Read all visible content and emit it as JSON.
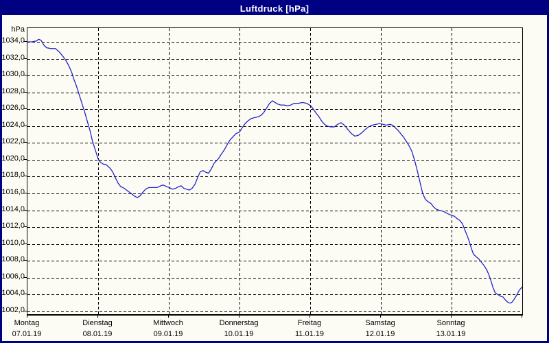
{
  "window": {
    "title": "Luftdruck [hPa]",
    "title_bar_color": "#000082",
    "border_color": "#000082",
    "client_background": "#FCFCF4"
  },
  "chart_data": {
    "type": "line",
    "title": "Luftdruck [hPa]",
    "ylabel": "hPa",
    "series_name": "Luftdruck",
    "line_color": "#2222CC",
    "grid": "dashed",
    "legend": "none",
    "ylim": [
      1001.66,
      1035.63
    ],
    "ytick_min": 1002,
    "ytick_max": 1034,
    "ytick_step": 2,
    "ytick_labels": [
      "1034,0",
      "1032,0",
      "1030,0",
      "1028,0",
      "1026,0",
      "1024,0",
      "1022,0",
      "1020,0",
      "1018,0",
      "1016,0",
      "1014,0",
      "1012,0",
      "1010,0",
      "1008,0",
      "1006,0",
      "1004,0",
      "1002,0"
    ],
    "x_total_hours": 168,
    "days": [
      {
        "label": "Montag",
        "date": "07.01.19"
      },
      {
        "label": "Dienstag",
        "date": "08.01.19"
      },
      {
        "label": "Mittwoch",
        "date": "09.01.19"
      },
      {
        "label": "Donnerstag",
        "date": "10.01.19"
      },
      {
        "label": "Freitag",
        "date": "11.01.19"
      },
      {
        "label": "Samstag",
        "date": "12.01.19"
      },
      {
        "label": "Sonntag",
        "date": "13.01.19"
      }
    ],
    "points": [
      [
        0,
        1034.0
      ],
      [
        1.5,
        1034.0
      ],
      [
        3,
        1034.1
      ],
      [
        3.8,
        1034.3
      ],
      [
        4.6,
        1034.2
      ],
      [
        5.6,
        1033.6
      ],
      [
        6.5,
        1033.3
      ],
      [
        8,
        1033.2
      ],
      [
        9.5,
        1033.2
      ],
      [
        10.8,
        1032.8
      ],
      [
        12,
        1032.3
      ],
      [
        13,
        1031.8
      ],
      [
        14,
        1031.2
      ],
      [
        15.1,
        1030.3
      ],
      [
        15.7,
        1029.6
      ],
      [
        16.6,
        1028.8
      ],
      [
        17.5,
        1027.8
      ],
      [
        18.4,
        1026.8
      ],
      [
        19.4,
        1025.7
      ],
      [
        20.3,
        1024.6
      ],
      [
        21.2,
        1023.5
      ],
      [
        22.1,
        1022.2
      ],
      [
        23,
        1021.2
      ],
      [
        24,
        1020.1
      ],
      [
        24.8,
        1019.7
      ],
      [
        25.6,
        1019.5
      ],
      [
        26.8,
        1019.4
      ],
      [
        28,
        1019.0
      ],
      [
        28.9,
        1018.6
      ],
      [
        29.8,
        1017.9
      ],
      [
        30.8,
        1017.2
      ],
      [
        31.7,
        1016.8
      ],
      [
        32.9,
        1016.6
      ],
      [
        34,
        1016.3
      ],
      [
        35.2,
        1016.0
      ],
      [
        36.3,
        1015.7
      ],
      [
        37.3,
        1015.5
      ],
      [
        38.2,
        1015.7
      ],
      [
        39.1,
        1016.1
      ],
      [
        40.1,
        1016.5
      ],
      [
        41.2,
        1016.7
      ],
      [
        42.6,
        1016.7
      ],
      [
        44,
        1016.7
      ],
      [
        45.2,
        1016.9
      ],
      [
        46.1,
        1017.0
      ],
      [
        47.3,
        1016.8
      ],
      [
        48.2,
        1016.7
      ],
      [
        49.2,
        1016.5
      ],
      [
        50.3,
        1016.6
      ],
      [
        51.3,
        1016.8
      ],
      [
        52.2,
        1016.9
      ],
      [
        53.1,
        1016.6
      ],
      [
        54,
        1016.5
      ],
      [
        55,
        1016.4
      ],
      [
        55.9,
        1016.6
      ],
      [
        56.9,
        1017.1
      ],
      [
        57.8,
        1017.9
      ],
      [
        58.7,
        1018.6
      ],
      [
        59.7,
        1018.7
      ],
      [
        60.6,
        1018.5
      ],
      [
        61.5,
        1018.4
      ],
      [
        62.4,
        1018.9
      ],
      [
        63.4,
        1019.6
      ],
      [
        64.8,
        1020.1
      ],
      [
        65.7,
        1020.6
      ],
      [
        66.9,
        1021.2
      ],
      [
        67.8,
        1021.8
      ],
      [
        68.7,
        1022.3
      ],
      [
        69.7,
        1022.7
      ],
      [
        70.8,
        1023.1
      ],
      [
        72,
        1023.3
      ],
      [
        72.9,
        1023.8
      ],
      [
        73.9,
        1024.3
      ],
      [
        74.8,
        1024.6
      ],
      [
        76,
        1024.9
      ],
      [
        77.1,
        1025.0
      ],
      [
        78.3,
        1025.1
      ],
      [
        79.4,
        1025.3
      ],
      [
        80.4,
        1025.7
      ],
      [
        81.3,
        1026.2
      ],
      [
        82.2,
        1026.7
      ],
      [
        83.2,
        1027.0
      ],
      [
        84.1,
        1026.8
      ],
      [
        85,
        1026.6
      ],
      [
        86,
        1026.5
      ],
      [
        87.1,
        1026.5
      ],
      [
        88.3,
        1026.4
      ],
      [
        89.4,
        1026.5
      ],
      [
        90.6,
        1026.7
      ],
      [
        92,
        1026.7
      ],
      [
        93.4,
        1026.8
      ],
      [
        94.8,
        1026.7
      ],
      [
        96.2,
        1026.4
      ],
      [
        97.1,
        1026.0
      ],
      [
        98.1,
        1025.5
      ],
      [
        99,
        1025.1
      ],
      [
        99.9,
        1024.6
      ],
      [
        100.9,
        1024.2
      ],
      [
        101.8,
        1024.0
      ],
      [
        103,
        1023.9
      ],
      [
        104.2,
        1023.9
      ],
      [
        105.3,
        1024.2
      ],
      [
        106.5,
        1024.4
      ],
      [
        107.6,
        1024.1
      ],
      [
        108.8,
        1023.6
      ],
      [
        110,
        1023.1
      ],
      [
        111.2,
        1022.8
      ],
      [
        112.3,
        1022.9
      ],
      [
        113.5,
        1023.2
      ],
      [
        114.7,
        1023.6
      ],
      [
        115.8,
        1023.9
      ],
      [
        117,
        1024.1
      ],
      [
        118.4,
        1024.2
      ],
      [
        119.5,
        1024.3
      ],
      [
        120.7,
        1024.2
      ],
      [
        121.9,
        1024.1
      ],
      [
        123,
        1024.2
      ],
      [
        124,
        1024.1
      ],
      [
        124.9,
        1023.8
      ],
      [
        125.8,
        1023.5
      ],
      [
        126.7,
        1023.1
      ],
      [
        127.7,
        1022.7
      ],
      [
        128.6,
        1022.2
      ],
      [
        129.5,
        1021.7
      ],
      [
        130.5,
        1021.0
      ],
      [
        131.4,
        1020.0
      ],
      [
        132.3,
        1018.8
      ],
      [
        133.3,
        1017.3
      ],
      [
        134.2,
        1016.0
      ],
      [
        135.1,
        1015.3
      ],
      [
        136.1,
        1015.0
      ],
      [
        137,
        1014.8
      ],
      [
        137.9,
        1014.4
      ],
      [
        138.9,
        1014.1
      ],
      [
        139.8,
        1014.0
      ],
      [
        141,
        1013.9
      ],
      [
        142.1,
        1013.7
      ],
      [
        143.3,
        1013.5
      ],
      [
        144,
        1013.4
      ],
      [
        144.9,
        1013.3
      ],
      [
        145.9,
        1013.0
      ],
      [
        146.8,
        1012.8
      ],
      [
        147.7,
        1012.4
      ],
      [
        148.6,
        1011.6
      ],
      [
        149.3,
        1011.0
      ],
      [
        150,
        1010.3
      ],
      [
        150.7,
        1009.5
      ],
      [
        151.4,
        1008.8
      ],
      [
        152.3,
        1008.5
      ],
      [
        153.3,
        1008.2
      ],
      [
        154.2,
        1007.8
      ],
      [
        155.1,
        1007.4
      ],
      [
        156,
        1006.9
      ],
      [
        156.7,
        1006.3
      ],
      [
        157.4,
        1005.6
      ],
      [
        158.1,
        1004.8
      ],
      [
        158.8,
        1004.2
      ],
      [
        159.7,
        1004.0
      ],
      [
        160.6,
        1003.8
      ],
      [
        161.5,
        1003.7
      ],
      [
        162.4,
        1003.3
      ],
      [
        163.4,
        1003.0
      ],
      [
        164.3,
        1003.0
      ],
      [
        165.2,
        1003.4
      ],
      [
        166.1,
        1003.9
      ],
      [
        167,
        1004.5
      ],
      [
        168,
        1004.9
      ]
    ]
  }
}
